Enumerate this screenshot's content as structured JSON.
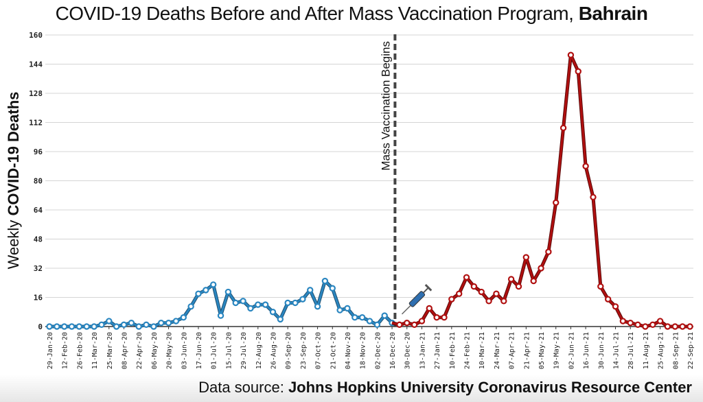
{
  "chart_data": {
    "type": "line",
    "title": "COVID-19 Deaths Before and After Mass Vaccination Program,",
    "title_bold": "Bahrain",
    "ylabel_prefix": "Weekly",
    "ylabel_bold": "COVID-19 Deaths",
    "xlabel": "",
    "ylim": [
      0,
      160
    ],
    "yticks": [
      0,
      16,
      32,
      48,
      64,
      80,
      96,
      112,
      128,
      144,
      160
    ],
    "grid": true,
    "x_start": "29-Jan-20",
    "x_interval": "weekly",
    "xtick_labels": [
      "29-Jan-20",
      "12-Feb-20",
      "26-Feb-20",
      "11-Mar-20",
      "25-Mar-20",
      "08-Apr-20",
      "22-Apr-20",
      "06-May-20",
      "20-May-20",
      "03-Jun-20",
      "17-Jun-20",
      "01-Jul-20",
      "15-Jul-20",
      "29-Jul-20",
      "12-Aug-20",
      "26-Aug-20",
      "09-Sep-20",
      "23-Sep-20",
      "07-Oct-20",
      "21-Oct-20",
      "04-Nov-20",
      "18-Nov-20",
      "02-Dec-20",
      "16-Dec-20",
      "30-Dec-20",
      "13-Jan-21",
      "27-Jan-21",
      "10-Feb-21",
      "24-Feb-21",
      "10-Mar-21",
      "24-Mar-21",
      "07-Apr-21",
      "21-Apr-21",
      "05-May-21",
      "19-May-21",
      "02-Jun-21",
      "16-Jun-21",
      "30-Jun-21",
      "14-Jul-21",
      "28-Jul-21",
      "11-Aug-21",
      "25-Aug-21",
      "08-Sep-21",
      "22-Sep-21"
    ],
    "series": [
      {
        "period": "before",
        "color": "#2a86c0",
        "start": "29-Jan-20",
        "values": [
          0,
          0,
          0,
          0,
          0,
          0,
          0,
          1,
          3,
          0,
          1,
          2,
          0,
          1,
          0,
          2,
          2,
          3,
          5,
          11,
          18,
          20,
          23,
          6,
          19,
          13,
          14,
          10,
          12,
          12,
          8,
          4,
          13,
          13,
          15,
          20,
          11,
          25,
          21,
          9,
          10,
          5,
          5,
          3,
          1,
          6,
          2
        ]
      },
      {
        "period": "after",
        "color": "#b01010",
        "start": "23-Dec-20",
        "values": [
          1,
          2,
          1,
          3,
          10,
          5,
          5,
          15,
          18,
          27,
          22,
          19,
          14,
          18,
          14,
          26,
          22,
          38,
          25,
          32,
          41,
          68,
          109,
          149,
          140,
          88,
          71,
          22,
          15,
          11,
          3,
          2,
          1,
          0,
          1,
          3,
          0,
          0,
          0,
          0
        ]
      }
    ],
    "annotation": "Mass Vaccination Begins",
    "annotation_icon": "syringe-icon"
  },
  "source": {
    "prefix": "Data source:",
    "bold": "Johns Hopkins University Coronavirus Resource Center"
  }
}
